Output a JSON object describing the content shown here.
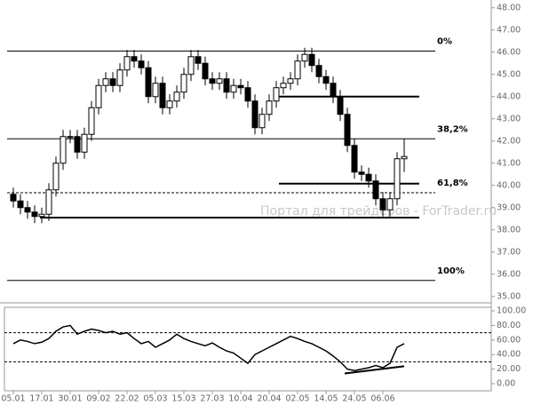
{
  "chart_data": [
    {
      "type": "candlestick",
      "watermark": "Портал для трейдеров - ForTrader.ru",
      "open": [
        39.6,
        39.3,
        39.0,
        38.8,
        38.6,
        38.7,
        39.8,
        41.0,
        42.2,
        42.2,
        41.5,
        42.3,
        43.5,
        44.5,
        44.8,
        44.5,
        45.2,
        45.8,
        45.6,
        45.3,
        44.0,
        44.6,
        43.5,
        43.8,
        44.2,
        45.0,
        45.8,
        45.5,
        44.8,
        44.6,
        44.8,
        44.2,
        44.5,
        44.4,
        43.8,
        42.6,
        43.2,
        43.8,
        44.4,
        44.6,
        44.8,
        45.6,
        45.9,
        45.4,
        44.9,
        44.6,
        44.0,
        43.2,
        41.8,
        40.6,
        40.5,
        40.2,
        39.4,
        38.9,
        39.4,
        41.2
      ],
      "high": [
        39.9,
        39.6,
        39.3,
        39.1,
        39.0,
        40.1,
        41.3,
        42.5,
        42.5,
        42.5,
        42.6,
        43.8,
        44.8,
        45.1,
        45.1,
        45.5,
        46.1,
        46.1,
        45.9,
        45.6,
        44.9,
        44.9,
        44.1,
        44.5,
        45.3,
        46.1,
        46.1,
        45.8,
        45.1,
        45.1,
        45.1,
        44.8,
        44.8,
        44.7,
        44.1,
        43.5,
        44.1,
        44.7,
        44.9,
        45.1,
        45.9,
        46.2,
        46.2,
        45.7,
        45.2,
        44.9,
        44.3,
        43.5,
        42.1,
        40.9,
        40.8,
        40.5,
        39.7,
        39.7,
        41.5,
        42.1
      ],
      "low": [
        39.0,
        38.7,
        38.5,
        38.3,
        38.3,
        38.4,
        39.5,
        40.7,
        41.9,
        41.2,
        41.2,
        42.0,
        43.2,
        44.2,
        44.2,
        44.2,
        44.9,
        45.3,
        45.0,
        43.7,
        43.7,
        43.2,
        43.2,
        43.5,
        43.9,
        44.7,
        45.2,
        44.5,
        44.3,
        44.3,
        43.9,
        43.9,
        44.1,
        43.5,
        42.3,
        42.3,
        42.9,
        43.5,
        44.1,
        44.3,
        44.5,
        45.3,
        45.1,
        44.6,
        44.3,
        43.7,
        42.9,
        41.5,
        40.3,
        40.2,
        39.9,
        39.1,
        38.6,
        38.6,
        39.1,
        40.6
      ],
      "close": [
        39.3,
        39.0,
        38.8,
        38.6,
        38.7,
        39.8,
        41.0,
        42.2,
        42.2,
        41.5,
        42.3,
        43.5,
        44.5,
        44.8,
        44.5,
        45.2,
        45.8,
        45.6,
        45.3,
        44.0,
        44.6,
        43.5,
        43.8,
        44.2,
        45.0,
        45.8,
        45.5,
        44.8,
        44.6,
        44.8,
        44.2,
        44.5,
        44.4,
        43.8,
        42.6,
        43.2,
        43.8,
        44.4,
        44.6,
        44.8,
        45.6,
        45.9,
        45.4,
        44.9,
        44.6,
        44.0,
        43.2,
        41.8,
        40.6,
        40.5,
        40.2,
        39.4,
        38.9,
        39.4,
        41.2,
        41.3
      ],
      "levels": [
        {
          "value": 46.05,
          "label": "0%"
        },
        {
          "value": 42.1,
          "label": "38,2%"
        },
        {
          "value": 39.67,
          "label": "61,8%",
          "style": "dashed"
        },
        {
          "value": 35.72,
          "label": "100%"
        }
      ],
      "trendlines": [
        44.0,
        40.08,
        38.55
      ],
      "ylim": [
        34.75,
        48.35
      ],
      "yticks": [
        {
          "value": 35,
          "label": "35.00"
        },
        {
          "value": 36,
          "label": "36.00"
        },
        {
          "value": 37,
          "label": "37.00"
        },
        {
          "value": 38,
          "label": "38.00"
        },
        {
          "value": 39,
          "label": "39.00"
        },
        {
          "value": 40,
          "label": "40.00"
        },
        {
          "value": 41,
          "label": "41.00"
        },
        {
          "value": 42,
          "label": "42.00"
        },
        {
          "value": 43,
          "label": "43.00"
        },
        {
          "value": 44,
          "label": "44.00"
        },
        {
          "value": 45,
          "label": "45.00"
        },
        {
          "value": 46,
          "label": "46.00"
        },
        {
          "value": 47,
          "label": "47.00"
        },
        {
          "value": 48,
          "label": "48.00"
        }
      ]
    },
    {
      "type": "line",
      "categories": [
        "05.01",
        null,
        null,
        null,
        "17.01",
        null,
        null,
        null,
        "30.01",
        null,
        null,
        null,
        "09.02",
        null,
        null,
        null,
        "22.02",
        null,
        null,
        null,
        "05.03",
        null,
        null,
        null,
        "15.03",
        null,
        null,
        null,
        "27.03",
        null,
        null,
        null,
        "10.04",
        null,
        null,
        null,
        "20.04",
        null,
        null,
        null,
        "02.05",
        null,
        null,
        null,
        "14.05",
        null,
        null,
        null,
        "24.05",
        null,
        null,
        null,
        "06.06",
        null,
        null,
        null
      ],
      "values": [
        55,
        60,
        58,
        55,
        57,
        62,
        72,
        78,
        80,
        68,
        72,
        75,
        73,
        70,
        72,
        68,
        70,
        62,
        55,
        58,
        50,
        55,
        60,
        68,
        62,
        58,
        55,
        52,
        56,
        50,
        45,
        42,
        35,
        28,
        40,
        45,
        50,
        55,
        60,
        65,
        62,
        58,
        55,
        50,
        45,
        38,
        30,
        20,
        18,
        20,
        22,
        25,
        22,
        28,
        50,
        55
      ],
      "color": "#000000",
      "levels": [
        70,
        30
      ],
      "trendline": [
        14,
        24
      ],
      "ylim": [
        -9.75,
        104.9
      ],
      "yticks": [
        {
          "value": 0,
          "label": "0.00"
        },
        {
          "value": 20,
          "label": "20.00"
        },
        {
          "value": 40,
          "label": "40.00"
        },
        {
          "value": 60,
          "label": "60.00"
        },
        {
          "value": 80,
          "label": "80.00"
        },
        {
          "value": 100,
          "label": "100.00"
        }
      ]
    }
  ]
}
